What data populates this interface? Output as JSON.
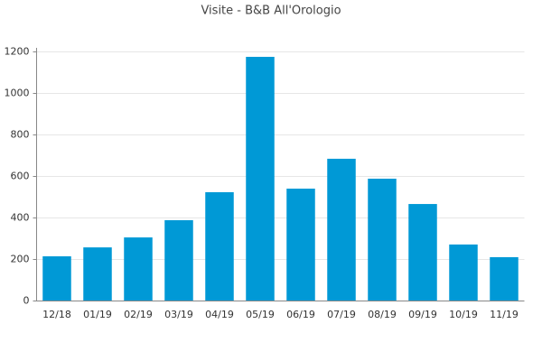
{
  "chart_data": {
    "type": "bar",
    "title": "Visite - B&B All'Orologio",
    "categories": [
      "12/18",
      "01/19",
      "02/19",
      "03/19",
      "04/19",
      "05/19",
      "06/19",
      "07/19",
      "08/19",
      "09/19",
      "10/19",
      "11/19"
    ],
    "values": [
      213,
      256,
      304,
      387,
      522,
      1174,
      539,
      683,
      587,
      465,
      270,
      209
    ],
    "color": "#0099d6",
    "ylim": [
      0,
      1200
    ],
    "yticks": [
      0,
      200,
      400,
      600,
      800,
      1000,
      1200
    ],
    "grid": true
  }
}
